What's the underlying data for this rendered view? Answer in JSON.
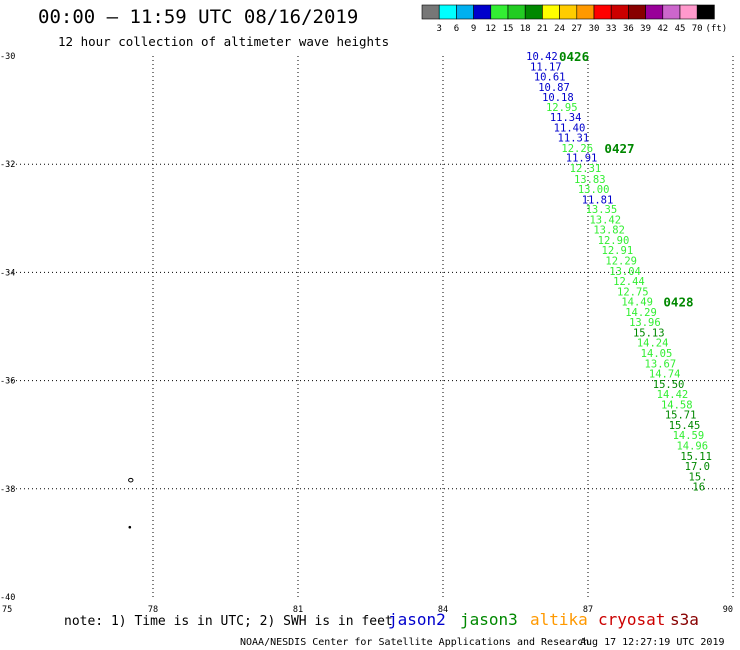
{
  "header": {
    "title": "00:00 – 11:59 UTC 08/16/2019",
    "subtitle": "12 hour collection of altimeter wave heights"
  },
  "colorbar": {
    "boxes": [
      "#777777",
      "#00ffff",
      "#00b0f0",
      "#0000cc",
      "#33ee33",
      "#22cc22",
      "#008800",
      "#ffff00",
      "#ffcc00",
      "#ff9900",
      "#ff0000",
      "#cc0000",
      "#880000",
      "#990099",
      "#cc66cc",
      "#ff99cc",
      "#000000"
    ],
    "labels": [
      "3",
      "6",
      "9",
      "12",
      "15",
      "18",
      "21",
      "24",
      "27",
      "30",
      "33",
      "36",
      "39",
      "42",
      "45",
      "70"
    ],
    "unit": "(ft)"
  },
  "footer": {
    "note": "note: 1) Time is in UTC; 2) SWH is in feet",
    "satellites": [
      {
        "name": "jason2",
        "color": "#0000cc"
      },
      {
        "name": "jason3",
        "color": "#008800"
      },
      {
        "name": "altika",
        "color": "#ff9900"
      },
      {
        "name": "cryosat",
        "color": "#cc0000"
      },
      {
        "name": "s3a",
        "color": "#880000"
      }
    ],
    "credit": "NOAA/NESDIS Center for Satellite Applications and Research",
    "timestamp": "Aug 17 12:27:19 UTC 2019"
  },
  "chart_data": {
    "type": "scatter",
    "xlim": [
      75,
      90
    ],
    "ylim": [
      -40,
      -30
    ],
    "x_ticks": [
      75,
      78,
      81,
      84,
      87,
      90
    ],
    "y_ticks": [
      -30,
      -32,
      -34,
      -36,
      -38,
      -40
    ],
    "x_tick_labels": [
      "75",
      "78",
      "81",
      "84",
      "87",
      "90"
    ],
    "y_tick_labels": [
      "-30",
      "-32",
      "-34",
      "-36",
      "-38",
      "-40"
    ],
    "grid": true,
    "colors": {
      "jason2": "#0000cc",
      "jason3": "#008800",
      "light": "#33ee33"
    },
    "points": [
      {
        "x": 85.72,
        "y": -30.0,
        "v": "10.42",
        "c": "jason2"
      },
      {
        "x": 85.8,
        "y": -30.19,
        "v": "11.17",
        "c": "jason2"
      },
      {
        "x": 85.88,
        "y": -30.38,
        "v": "10.61",
        "c": "jason2"
      },
      {
        "x": 85.97,
        "y": -30.57,
        "v": "10.87",
        "c": "jason2"
      },
      {
        "x": 86.05,
        "y": -30.76,
        "v": "10.18",
        "c": "jason2"
      },
      {
        "x": 86.13,
        "y": -30.94,
        "v": "12.95",
        "c": "light"
      },
      {
        "x": 86.21,
        "y": -31.13,
        "v": "11.34",
        "c": "jason2"
      },
      {
        "x": 86.29,
        "y": -31.32,
        "v": "11.40",
        "c": "jason2"
      },
      {
        "x": 86.37,
        "y": -31.51,
        "v": "11.31",
        "c": "jason2"
      },
      {
        "x": 86.45,
        "y": -31.7,
        "v": "12.26",
        "c": "light"
      },
      {
        "x": 86.54,
        "y": -31.88,
        "v": "11.91",
        "c": "jason2"
      },
      {
        "x": 86.62,
        "y": -32.07,
        "v": "12.31",
        "c": "light"
      },
      {
        "x": 86.71,
        "y": -32.27,
        "v": "13.83",
        "c": "light"
      },
      {
        "x": 86.79,
        "y": -32.46,
        "v": "13.00",
        "c": "light"
      },
      {
        "x": 86.87,
        "y": -32.65,
        "v": "11.81",
        "c": "jason2"
      },
      {
        "x": 86.95,
        "y": -32.83,
        "v": "13.35",
        "c": "light"
      },
      {
        "x": 87.03,
        "y": -33.02,
        "v": "13.42",
        "c": "light"
      },
      {
        "x": 87.11,
        "y": -33.21,
        "v": "13.82",
        "c": "light"
      },
      {
        "x": 87.2,
        "y": -33.4,
        "v": "12.90",
        "c": "light"
      },
      {
        "x": 87.28,
        "y": -33.59,
        "v": "12.91",
        "c": "light"
      },
      {
        "x": 87.36,
        "y": -33.78,
        "v": "12.29",
        "c": "light"
      },
      {
        "x": 87.44,
        "y": -33.97,
        "v": "13.04",
        "c": "light"
      },
      {
        "x": 87.52,
        "y": -34.16,
        "v": "12.44",
        "c": "light"
      },
      {
        "x": 87.6,
        "y": -34.35,
        "v": "12.75",
        "c": "light"
      },
      {
        "x": 87.69,
        "y": -34.54,
        "v": "14.49",
        "c": "light"
      },
      {
        "x": 87.77,
        "y": -34.73,
        "v": "14.29",
        "c": "light"
      },
      {
        "x": 87.85,
        "y": -34.92,
        "v": "13.96",
        "c": "light"
      },
      {
        "x": 87.93,
        "y": -35.11,
        "v": "15.13",
        "c": "jason3"
      },
      {
        "x": 88.01,
        "y": -35.3,
        "v": "14.24",
        "c": "light"
      },
      {
        "x": 88.09,
        "y": -35.49,
        "v": "14.05",
        "c": "light"
      },
      {
        "x": 88.17,
        "y": -35.68,
        "v": "13.67",
        "c": "light"
      },
      {
        "x": 88.26,
        "y": -35.87,
        "v": "14.74",
        "c": "light"
      },
      {
        "x": 88.34,
        "y": -36.06,
        "v": "15.50",
        "c": "jason3"
      },
      {
        "x": 88.42,
        "y": -36.25,
        "v": "14.42",
        "c": "light"
      },
      {
        "x": 88.51,
        "y": -36.44,
        "v": "14.58",
        "c": "light"
      },
      {
        "x": 88.59,
        "y": -36.63,
        "v": "15.71",
        "c": "jason3"
      },
      {
        "x": 88.67,
        "y": -36.82,
        "v": "15.45",
        "c": "jason3"
      },
      {
        "x": 88.75,
        "y": -37.01,
        "v": "14.59",
        "c": "light"
      },
      {
        "x": 88.83,
        "y": -37.2,
        "v": "14.96",
        "c": "light"
      },
      {
        "x": 88.91,
        "y": -37.39,
        "v": "15.11",
        "c": "jason3"
      },
      {
        "x": 89.0,
        "y": -37.58,
        "v": "17.0",
        "c": "jason3"
      },
      {
        "x": 89.08,
        "y": -37.77,
        "v": "15.",
        "c": "jason3"
      },
      {
        "x": 89.16,
        "y": -37.96,
        "v": "16",
        "c": "jason3"
      }
    ],
    "time_labels": [
      {
        "x": 86.4,
        "y": -30.0,
        "text": "0426"
      },
      {
        "x": 87.34,
        "y": -31.7,
        "text": "0427"
      },
      {
        "x": 88.56,
        "y": -34.54,
        "text": "0428"
      }
    ],
    "islands": [
      {
        "x": 77.54,
        "y": -37.84,
        "shape": "ring"
      },
      {
        "x": 77.52,
        "y": -38.71,
        "shape": "dot"
      }
    ]
  }
}
